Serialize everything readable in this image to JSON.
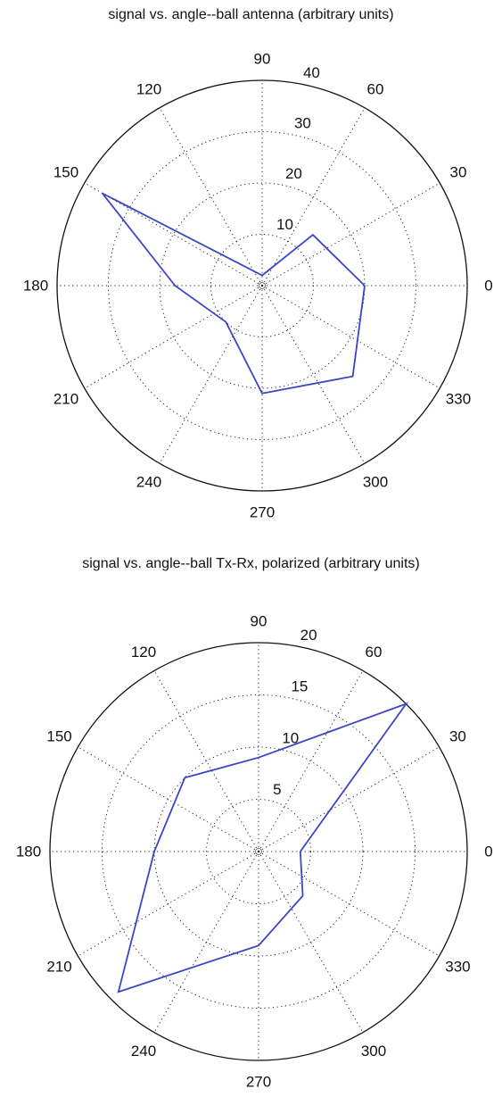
{
  "chart_data": [
    {
      "type": "polar-line",
      "title": "signal vs. angle--ball antenna (arbitrary units)",
      "r_max": 40,
      "r_ticks": [
        10,
        20,
        30,
        40
      ],
      "theta_ticks": [
        0,
        30,
        60,
        90,
        120,
        150,
        180,
        210,
        240,
        270,
        300,
        330
      ],
      "grid": true,
      "series": [
        {
          "color": "#3b46c4",
          "points": [
            {
              "theta": 0,
              "r": 20
            },
            {
              "theta": 45,
              "r": 14
            },
            {
              "theta": 90,
              "r": 2
            },
            {
              "theta": 150,
              "r": 36
            },
            {
              "theta": 180,
              "r": 17
            },
            {
              "theta": 225,
              "r": 10
            },
            {
              "theta": 270,
              "r": 21
            },
            {
              "theta": 315,
              "r": 25
            },
            {
              "theta": 360,
              "r": 20
            }
          ]
        }
      ]
    },
    {
      "type": "polar-line",
      "title": "signal vs. angle--ball Tx-Rx, polarized (arbitrary units)",
      "r_max": 20,
      "r_ticks": [
        5,
        10,
        15,
        20
      ],
      "theta_ticks": [
        0,
        30,
        60,
        90,
        120,
        150,
        180,
        210,
        240,
        270,
        300,
        330
      ],
      "grid": true,
      "series": [
        {
          "color": "#3b46c4",
          "points": [
            {
              "theta": 0,
              "r": 4
            },
            {
              "theta": 45,
              "r": 20
            },
            {
              "theta": 90,
              "r": 9
            },
            {
              "theta": 135,
              "r": 10
            },
            {
              "theta": 180,
              "r": 10
            },
            {
              "theta": 225,
              "r": 19
            },
            {
              "theta": 270,
              "r": 9
            },
            {
              "theta": 315,
              "r": 6
            },
            {
              "theta": 360,
              "r": 4
            }
          ]
        }
      ]
    }
  ]
}
